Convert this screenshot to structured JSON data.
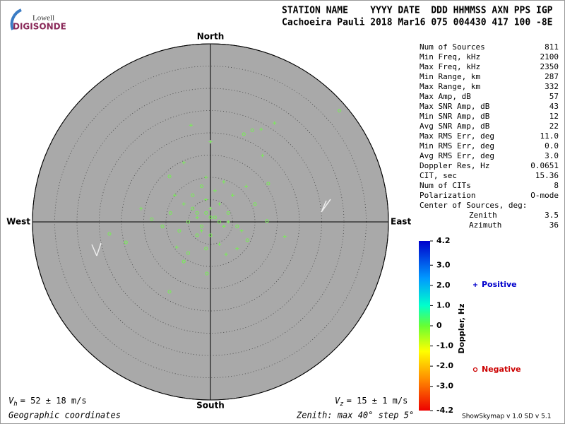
{
  "logo": {
    "top": "Lowell",
    "main": "DIGISONDE"
  },
  "header": {
    "line1": "STATION NAME    YYYY DATE  DDD HHMMSS AXN PPS IGP",
    "line2": "Cachoeira Pauli 2018 Mar16 075 004430 417 100 -8E"
  },
  "stats": {
    "rows": [
      [
        "Num of Sources",
        "811"
      ],
      [
        "Min Freq, kHz",
        "2100"
      ],
      [
        "Max Freq, kHz",
        "2350"
      ],
      [
        "Min Range, km",
        "287"
      ],
      [
        "Max Range, km",
        "332"
      ],
      [
        "Max Amp, dB",
        "57"
      ],
      [
        "Max SNR Amp, dB",
        "43"
      ],
      [
        "Min SNR Amp, dB",
        "12"
      ],
      [
        "Avg SNR Amp, dB",
        "22"
      ],
      [
        "Max RMS Err, deg",
        "11.0"
      ],
      [
        "Min RMS Err, deg",
        "0.0"
      ],
      [
        "Avg RMS Err, deg",
        "3.0"
      ],
      [
        "Doppler Res, Hz",
        "0.0651"
      ],
      [
        "CIT, sec",
        "15.36"
      ],
      [
        "Num of CITs",
        "8"
      ],
      [
        "Polarization",
        "O-mode"
      ]
    ],
    "center_title": "Center of Sources, deg:",
    "center_rows": [
      [
        "Zenith",
        "3.5"
      ],
      [
        "Azimuth",
        "36"
      ]
    ]
  },
  "footer": {
    "vh": {
      "symbol": "V",
      "subscript": "h",
      "text": "= 52 ± 18 m/s"
    },
    "vz": {
      "symbol": "V",
      "subscript": "z",
      "text": "= 15 ± 1 m/s"
    },
    "coords": "Geographic coordinates",
    "zenith": "Zenith: max 40°  step 5°",
    "version": "ShowSkymap v 1.0   SD v 5.1"
  },
  "chart_data": {
    "type": "skymap",
    "directions": {
      "north": "North",
      "south": "South",
      "west": "West",
      "east": "East"
    },
    "rlim": [
      0,
      40
    ],
    "rticks": [
      5,
      10,
      15,
      20,
      25,
      30,
      35,
      40
    ],
    "series": [
      {
        "name": "Positive",
        "marker": "plus",
        "color": "#77ee55",
        "legend_color": "#0000cc",
        "x": [
          -4.4,
          0,
          14.4,
          11.4,
          11.7,
          -6,
          -15.6,
          16.7,
          3.5,
          -7.6,
          -3,
          0,
          2,
          3,
          -1,
          -6,
          1,
          5,
          2,
          3,
          8,
          -8,
          6,
          -2,
          4,
          7,
          -1
        ],
        "y": [
          21.7,
          18,
          22.2,
          20.8,
          14.9,
          13.3,
          3,
          -3.3,
          -7.3,
          -5.7,
          1,
          3,
          4,
          -1,
          5,
          4,
          7,
          6,
          -5,
          9,
          8,
          6,
          -6,
          -2,
          0,
          -2,
          10
        ]
      },
      {
        "name": "Negative",
        "marker": "circle",
        "color": "#77ee55",
        "legend_color": "#cc0000",
        "x": [
          29,
          9.4,
          7.5,
          13,
          -9.2,
          -22.7,
          -19,
          -9.2,
          -0.8,
          12.7,
          8.3,
          -6,
          -10.8,
          -13.2,
          -1,
          -4,
          -2,
          1,
          -5,
          0,
          4,
          -3,
          -2,
          -7,
          6,
          -4,
          -1,
          10,
          -9,
          -5,
          -3,
          2,
          0
        ],
        "y": [
          25,
          20.6,
          19.7,
          8.6,
          10.2,
          -2.7,
          -4.6,
          -15.7,
          -11.6,
          0.2,
          -4.1,
          -8.9,
          -1,
          0.6,
          2,
          3,
          -1,
          1,
          0,
          -3,
          2,
          -3,
          8,
          -2,
          -1,
          6,
          -6,
          4,
          2,
          -7,
          2,
          0,
          1
        ]
      }
    ],
    "colorbar": {
      "label": "Doppler, Hz",
      "clim": [
        -4.2,
        4.2
      ],
      "ticks": [
        4.2,
        {
          "value": 3,
          "label": "3.0"
        },
        {
          "value": 2,
          "label": "2.0"
        },
        {
          "value": 1,
          "label": "1.0"
        },
        0,
        {
          "value": -1,
          "label": "-1.0"
        },
        {
          "value": -2,
          "label": "-2.0"
        },
        {
          "value": -3,
          "label": "-3.0"
        },
        -4.2
      ]
    }
  }
}
